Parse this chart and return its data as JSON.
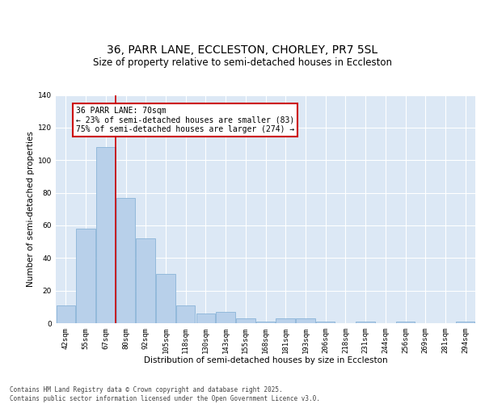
{
  "title1": "36, PARR LANE, ECCLESTON, CHORLEY, PR7 5SL",
  "title2": "Size of property relative to semi-detached houses in Eccleston",
  "xlabel": "Distribution of semi-detached houses by size in Eccleston",
  "ylabel": "Number of semi-detached properties",
  "categories": [
    "42sqm",
    "55sqm",
    "67sqm",
    "80sqm",
    "92sqm",
    "105sqm",
    "118sqm",
    "130sqm",
    "143sqm",
    "155sqm",
    "168sqm",
    "181sqm",
    "193sqm",
    "206sqm",
    "218sqm",
    "231sqm",
    "244sqm",
    "256sqm",
    "269sqm",
    "281sqm",
    "294sqm"
  ],
  "values": [
    11,
    58,
    108,
    77,
    52,
    30,
    11,
    6,
    7,
    3,
    1,
    3,
    3,
    1,
    0,
    1,
    0,
    1,
    0,
    0,
    1
  ],
  "highlight_index": 2,
  "bar_color": "#b8d0ea",
  "bar_edge_color": "#8ab4d8",
  "highlight_line_color": "#cc0000",
  "annotation_text": "36 PARR LANE: 70sqm\n← 23% of semi-detached houses are smaller (83)\n75% of semi-detached houses are larger (274) →",
  "annotation_box_color": "#ffffff",
  "annotation_box_edge": "#cc0000",
  "background_color": "#dce8f5",
  "plot_bg_color": "#dce8f5",
  "ylim": [
    0,
    140
  ],
  "yticks": [
    0,
    20,
    40,
    60,
    80,
    100,
    120,
    140
  ],
  "footer": "Contains HM Land Registry data © Crown copyright and database right 2025.\nContains public sector information licensed under the Open Government Licence v3.0.",
  "title1_fontsize": 10,
  "title2_fontsize": 8.5,
  "axis_label_fontsize": 7.5,
  "tick_fontsize": 6.5,
  "footer_fontsize": 5.5,
  "annotation_fontsize": 7
}
